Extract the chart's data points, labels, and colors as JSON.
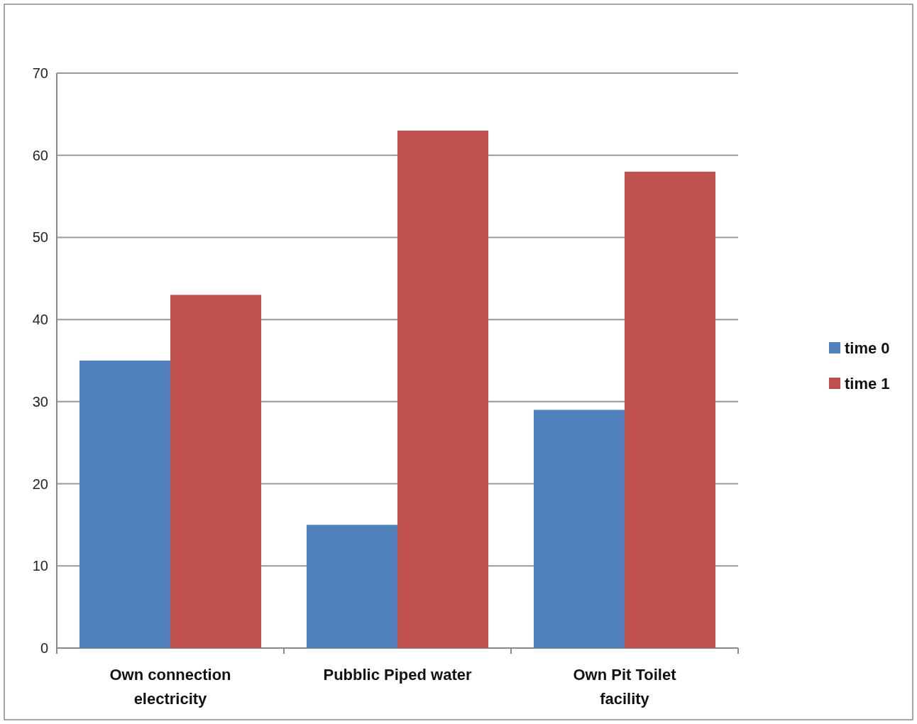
{
  "chart_data": {
    "type": "bar",
    "categories": [
      "Own connection electricity",
      "Pubblic Piped water",
      "Own Pit Toilet facility"
    ],
    "series": [
      {
        "name": "time 0",
        "color": "#4f81bd",
        "values": [
          35,
          15,
          29
        ]
      },
      {
        "name": "time 1",
        "color": "#c0504d",
        "values": [
          43,
          63,
          58
        ]
      }
    ],
    "ylim": [
      0,
      70
    ],
    "yticks": [
      0,
      10,
      20,
      30,
      40,
      50,
      60,
      70
    ],
    "grid": "y",
    "legend": "right"
  }
}
